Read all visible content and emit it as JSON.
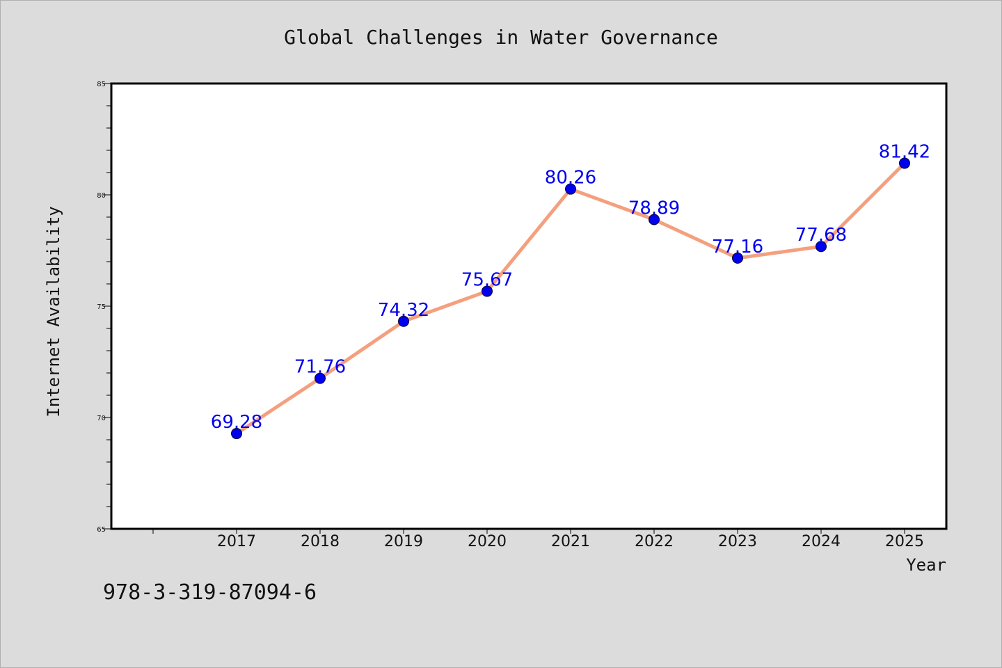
{
  "chart_data": {
    "type": "line",
    "title": "Global Challenges in Water Governance",
    "xlabel": "Year",
    "ylabel": "Internet Availability",
    "categories": [
      "2017",
      "2018",
      "2019",
      "2020",
      "2021",
      "2022",
      "2023",
      "2024",
      "2025"
    ],
    "series": [
      {
        "values": [
          69.28,
          71.76,
          74.32,
          75.67,
          80.26,
          78.89,
          77.16,
          77.68,
          81.42
        ],
        "data_labels": [
          "69.28",
          "71.76",
          "74.32",
          "75.67",
          "80.26",
          "78.89",
          "77.16",
          "77.68",
          "81.42"
        ],
        "line_color": "#f4a07e",
        "marker_color": "#0000ee"
      }
    ],
    "ylim": [
      65,
      85
    ],
    "yticks": [
      "65",
      "70",
      "75",
      "80",
      "85"
    ],
    "grid": false,
    "legend": "none"
  },
  "footer": {
    "isbn": "978-3-319-87094-6"
  },
  "colors": {
    "background": "#dcdcdc",
    "plot_background": "#ffffff",
    "label_color": "#0000ee"
  }
}
